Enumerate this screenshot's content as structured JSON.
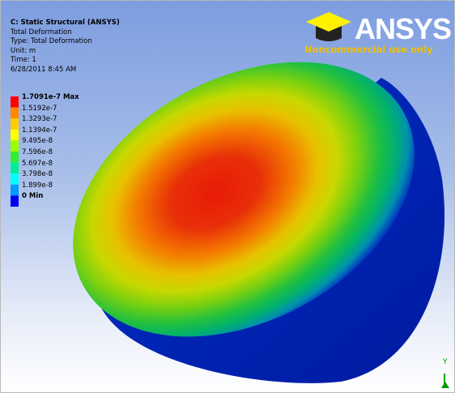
{
  "header": {
    "lines": [
      "C: Static Structural (ANSYS)",
      "Total Deformation",
      "Type: Total Deformation",
      "Unit: m",
      "Time: 1",
      "6/28/2011 8:45 AM"
    ]
  },
  "legend": {
    "labels": [
      "1.7091e-7 Max",
      "1.5192e-7",
      "1.3293e-7",
      "1.1394e-7",
      "9.495e-8",
      "7.596e-8",
      "5.697e-8",
      "3.798e-8",
      "1.899e-8",
      "0 Min"
    ],
    "colors": [
      "#ff0000",
      "#ff8800",
      "#ffcc00",
      "#ffff00",
      "#99ff00",
      "#33ee33",
      "#00ee99",
      "#00ffff",
      "#0099ff",
      "#0000ee"
    ]
  },
  "logo": {
    "brand": "ANSYS",
    "notice": "Noncommercial use only"
  },
  "triad": {
    "axis": "Y"
  }
}
